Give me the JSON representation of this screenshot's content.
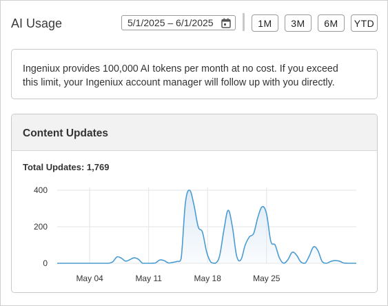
{
  "header": {
    "title": "AI Usage",
    "date_range": "5/1/2025 – 6/1/2025",
    "range_buttons": [
      "1M",
      "3M",
      "6M",
      "YTD"
    ]
  },
  "info": {
    "line1": "Ingeniux provides 100,000 AI tokens per month at no cost. If you exceed",
    "line2": "this limit, your Ingeniux account manager will follow up with you directly."
  },
  "card": {
    "title": "Content Updates",
    "total_label": "Total Updates: 1,769"
  },
  "chart_data": {
    "type": "area",
    "x_ticks": [
      "May 04",
      "May 11",
      "May 18",
      "May 25"
    ],
    "y_ticks": [
      0,
      200,
      400
    ],
    "ylim": [
      0,
      420
    ],
    "grid": true,
    "line_color": "#4a9bd1",
    "fill_color": "#dce9f6",
    "series": [
      {
        "points": [
          [
            0,
            0
          ],
          [
            1,
            0
          ],
          [
            2,
            0
          ],
          [
            3,
            0
          ],
          [
            4,
            0
          ],
          [
            5,
            0
          ],
          [
            6,
            0
          ],
          [
            7,
            0
          ],
          [
            8,
            0
          ],
          [
            9,
            0
          ],
          [
            10,
            0
          ],
          [
            11,
            0
          ],
          [
            12,
            0
          ],
          [
            13,
            8
          ],
          [
            14,
            35
          ],
          [
            15,
            28
          ],
          [
            16,
            12
          ],
          [
            17,
            20
          ],
          [
            18,
            30
          ],
          [
            19,
            22
          ],
          [
            20,
            0
          ],
          [
            21,
            0
          ],
          [
            22,
            0
          ],
          [
            23,
            2
          ],
          [
            24,
            18
          ],
          [
            25,
            15
          ],
          [
            26,
            2
          ],
          [
            27,
            5
          ],
          [
            28,
            10
          ],
          [
            29,
            25
          ],
          [
            30,
            330
          ],
          [
            31,
            400
          ],
          [
            32,
            320
          ],
          [
            33,
            200
          ],
          [
            34,
            170
          ],
          [
            35,
            60
          ],
          [
            36,
            5
          ],
          [
            37,
            0
          ],
          [
            38,
            40
          ],
          [
            39,
            180
          ],
          [
            40,
            290
          ],
          [
            41,
            200
          ],
          [
            42,
            40
          ],
          [
            43,
            20
          ],
          [
            44,
            100
          ],
          [
            45,
            145
          ],
          [
            46,
            165
          ],
          [
            47,
            255
          ],
          [
            48,
            310
          ],
          [
            49,
            270
          ],
          [
            50,
            120
          ],
          [
            51,
            100
          ],
          [
            52,
            30
          ],
          [
            53,
            0
          ],
          [
            54,
            20
          ],
          [
            55,
            60
          ],
          [
            56,
            45
          ],
          [
            57,
            8
          ],
          [
            58,
            0
          ],
          [
            59,
            40
          ],
          [
            60,
            90
          ],
          [
            61,
            70
          ],
          [
            62,
            10
          ],
          [
            63,
            0
          ],
          [
            64,
            10
          ],
          [
            65,
            15
          ],
          [
            66,
            12
          ],
          [
            67,
            2
          ],
          [
            68,
            0
          ],
          [
            69,
            0
          ],
          [
            70,
            0
          ]
        ]
      }
    ]
  }
}
